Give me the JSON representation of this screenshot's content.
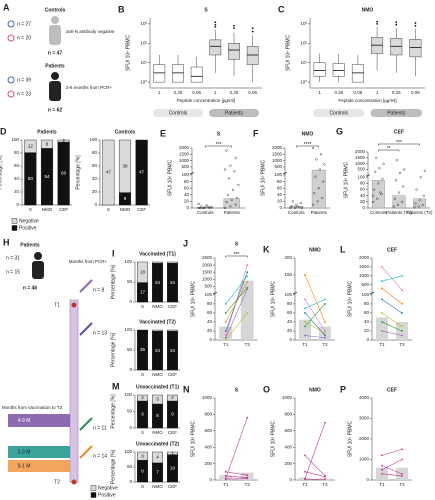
{
  "diagram_a": {
    "panel": "A",
    "controls": "Controls",
    "controls_male": "n = 27",
    "controls_female": "n = 20",
    "controls_note": "anti-N antibody negative",
    "controls_total": "n = 47",
    "patients": "Patients",
    "patients_male": "n = 39",
    "patients_female": "n = 23",
    "patients_note": "3-6 months from PCR+",
    "patients_total": "n = 62"
  },
  "diagram_h": {
    "panel": "H",
    "title": "Patients",
    "male": "n = 31",
    "female": "n = 15",
    "total": "n = 46",
    "axis": "Months from PCR+",
    "t1": "T1",
    "t2": "T2",
    "n1": "n = 8",
    "n2": "n = 13",
    "n3": "n = 11",
    "n4": "n = 14",
    "legend_title": "Months from vaccination to T2",
    "g1": "4-9 M",
    "g2": "2-3 M",
    "g3": "0-1 M"
  },
  "chart_data": [
    {
      "panel": "B",
      "type": "box",
      "title": "S",
      "ylabel": "SFU/ 10⁶ PBMC",
      "xlabel": "Peptide concentration [µg/ml]",
      "log": true,
      "ylim": [
        0.5,
        2000
      ],
      "yticks": [
        {
          "value": 1,
          "label": "10⁰"
        },
        {
          "value": 10,
          "label": "10¹"
        },
        {
          "value": 100,
          "label": "10²"
        },
        {
          "value": 1000,
          "label": "10³"
        }
      ],
      "groups": [
        {
          "name": "Controls",
          "color": "#ffffff",
          "pill": "#e6e6e6",
          "categories": [
            "1",
            "0.25",
            "0.06"
          ],
          "boxes": [
            {
              "low": 1,
              "q1": 1,
              "median": 3,
              "q3": 8,
              "high": 25
            },
            {
              "low": 1,
              "q1": 1,
              "median": 3,
              "q3": 8,
              "high": 25
            },
            {
              "low": 1,
              "q1": 1,
              "median": 2,
              "q3": 6,
              "high": 20
            }
          ]
        },
        {
          "name": "Patients",
          "color": "#d9d9d9",
          "pill": "#bdbdbd",
          "categories": [
            "1",
            "0.25",
            "0.06"
          ],
          "boxes": [
            {
              "low": 3,
              "q1": 25,
              "median": 70,
              "q3": 150,
              "high": 500,
              "outliers": [
                700,
                900,
                1200
              ]
            },
            {
              "low": 2,
              "q1": 15,
              "median": 45,
              "q3": 100,
              "high": 350,
              "outliers": [
                600,
                800
              ]
            },
            {
              "low": 1,
              "q1": 8,
              "median": 25,
              "q3": 70,
              "high": 250,
              "outliers": [
                400,
                600
              ]
            }
          ]
        }
      ]
    },
    {
      "panel": "C",
      "type": "box",
      "title": "NMO",
      "ylabel": "SFU/ 10⁶ PBMC",
      "xlabel": "Peptide concentration [µg/ml]",
      "log": true,
      "ylim": [
        0.5,
        2000
      ],
      "yticks": [
        {
          "value": 1,
          "label": "10⁰"
        },
        {
          "value": 10,
          "label": "10¹"
        },
        {
          "value": 100,
          "label": "10²"
        },
        {
          "value": 1000,
          "label": "10³"
        }
      ],
      "groups": [
        {
          "name": "Controls",
          "color": "#ffffff",
          "pill": "#e6e6e6",
          "categories": [
            "1",
            "0.25",
            "0.06"
          ],
          "boxes": [
            {
              "low": 1,
              "q1": 2,
              "median": 4,
              "q3": 10,
              "high": 30
            },
            {
              "low": 1,
              "q1": 2,
              "median": 4,
              "q3": 9,
              "high": 28
            },
            {
              "low": 1,
              "q1": 1,
              "median": 3,
              "q3": 8,
              "high": 25
            }
          ]
        },
        {
          "name": "Patients",
          "color": "#d9d9d9",
          "pill": "#bdbdbd",
          "categories": [
            "1",
            "0.25",
            "0.06"
          ],
          "boxes": [
            {
              "low": 4,
              "q1": 30,
              "median": 80,
              "q3": 200,
              "high": 700,
              "outliers": [
                1000,
                1300
              ]
            },
            {
              "low": 3,
              "q1": 25,
              "median": 70,
              "q3": 180,
              "high": 600,
              "outliers": [
                900,
                1200
              ]
            },
            {
              "low": 2,
              "q1": 20,
              "median": 60,
              "q3": 160,
              "high": 550,
              "outliers": [
                800,
                1100
              ]
            }
          ]
        }
      ]
    },
    {
      "panel": "D",
      "type": "stacked",
      "title": "Patients",
      "ylabel": "Percentage [%]",
      "categories": [
        "S",
        "NMO",
        "CEF"
      ],
      "ylim": [
        0,
        100
      ],
      "yticks": [
        0,
        20,
        40,
        60,
        80,
        100
      ],
      "legend": "bottom",
      "series": [
        {
          "name": "Negative",
          "color": "#d9d9d9",
          "values": [
            19.4,
            12.9,
            3.2
          ],
          "counts": [
            12,
            8,
            2
          ]
        },
        {
          "name": "Positive",
          "color": "#111111",
          "values": [
            80.6,
            87.1,
            96.8
          ],
          "counts": [
            50,
            54,
            60
          ]
        }
      ]
    },
    {
      "type": "stacked",
      "title": "Controls",
      "ylabel": "Percentage [%]",
      "categories": [
        "S",
        "NMO",
        "CEF"
      ],
      "ylim": [
        0,
        100
      ],
      "yticks": [
        0,
        20,
        40,
        60,
        80,
        100
      ],
      "series": [
        {
          "name": "Negative",
          "color": "#d9d9d9",
          "values": [
            100,
            80.9,
            0
          ],
          "counts": [
            47,
            38,
            null
          ]
        },
        {
          "name": "Positive",
          "color": "#111111",
          "values": [
            0,
            19.1,
            100
          ],
          "counts": [
            null,
            9,
            47
          ]
        }
      ]
    },
    {
      "panel": "E",
      "type": "dot",
      "title": "S",
      "ylabel": "SFU/ 10⁶ PBMC",
      "categories": [
        "Controls",
        "Patients"
      ],
      "ylim": [
        0,
        2000
      ],
      "ybreak": 100,
      "yticks": [
        0,
        20,
        40,
        60,
        80,
        100,
        500,
        1000,
        1500,
        2000
      ],
      "means": [
        2,
        28
      ],
      "points": [
        [
          0,
          0,
          0,
          0,
          2,
          3,
          5,
          8,
          1,
          0,
          4,
          12
        ],
        [
          0,
          5,
          10,
          18,
          25,
          30,
          40,
          55,
          70,
          90,
          150,
          300,
          600,
          1200,
          1800
        ]
      ],
      "significance": [
        {
          "label": "***",
          "from": 0,
          "to": 1
        }
      ]
    },
    {
      "panel": "F",
      "type": "dot",
      "title": "NMO",
      "ylabel": "SFU/ 10⁶ PBMC",
      "categories": [
        "Controls",
        "Patients"
      ],
      "ylim": [
        0,
        2000
      ],
      "ybreak": 100,
      "yticks": [
        0,
        20,
        40,
        60,
        80,
        100,
        500,
        1000,
        1500,
        2000
      ],
      "means": [
        5,
        250
      ],
      "points": [
        [
          0,
          0,
          2,
          5,
          10,
          15,
          20,
          4,
          0
        ],
        [
          10,
          20,
          30,
          45,
          60,
          80,
          95,
          300,
          700,
          1100,
          1500,
          2000
        ]
      ],
      "significance": [
        {
          "label": "****",
          "from": 0,
          "to": 1
        }
      ]
    },
    {
      "panel": "G",
      "type": "dot",
      "title": "CEF",
      "ylabel": "SFU/ 10⁶ PBMC",
      "categories": [
        "Controls",
        "Patients (T1)",
        "Patients (T2)"
      ],
      "ylim": [
        0,
        2000
      ],
      "ybreak": 100,
      "yticks": [
        0,
        20,
        40,
        60,
        80,
        100,
        500,
        1000,
        1500,
        2000
      ],
      "means": [
        90,
        40,
        30
      ],
      "points": [
        [
          20,
          30,
          45,
          60,
          80,
          95,
          300,
          600,
          1000,
          1500,
          50,
          40
        ],
        [
          5,
          10,
          20,
          30,
          50,
          70,
          90,
          200,
          500,
          1300
        ],
        [
          2,
          5,
          10,
          15,
          25,
          40,
          60,
          100,
          400
        ]
      ],
      "significance": [
        {
          "label": "**",
          "from": 0,
          "to": 1
        },
        {
          "label": "***",
          "from": 0,
          "to": 2
        }
      ]
    },
    {
      "panel": "I",
      "type": "stacked",
      "title": "Vaccinated (T1)",
      "ylabel": "Percentage [%]",
      "categories": [
        "S",
        "NMO",
        "CEF"
      ],
      "ylim": [
        0,
        100
      ],
      "yticks": [
        0,
        50,
        100
      ],
      "series": [
        {
          "name": "Negative",
          "color": "#d9d9d9",
          "values": [
            51.4,
            2.9,
            2.9
          ],
          "counts": [
            18,
            null,
            null
          ]
        },
        {
          "name": "Positive",
          "color": "#111111",
          "values": [
            48.6,
            97.1,
            97.1
          ],
          "counts": [
            17,
            34,
            34
          ]
        }
      ]
    },
    {
      "type": "stacked",
      "title": "Vaccinated (T2)",
      "ylabel": "Percentage [%]",
      "categories": [
        "S",
        "NMO",
        "CEF"
      ],
      "ylim": [
        0,
        100
      ],
      "yticks": [
        0,
        50,
        100
      ],
      "series": [
        {
          "name": "Negative",
          "color": "#d9d9d9",
          "values": [
            0,
            2.9,
            2.9
          ],
          "counts": [
            null,
            null,
            null
          ]
        },
        {
          "name": "Positive",
          "color": "#111111",
          "values": [
            100,
            97.1,
            97.1
          ],
          "counts": [
            35,
            34,
            34
          ]
        }
      ]
    },
    {
      "panel": "M",
      "type": "stacked",
      "title": "Unvaccinated (T1)",
      "ylabel": "Percentage [%]",
      "categories": [
        "S",
        "NMO",
        "CEF"
      ],
      "ylim": [
        0,
        100
      ],
      "yticks": [
        0,
        50,
        100
      ],
      "series": [
        {
          "name": "Negative",
          "color": "#d9d9d9",
          "values": [
            18.2,
            27.3,
            18.2
          ],
          "counts": [
            2,
            3,
            2
          ]
        },
        {
          "name": "Positive",
          "color": "#111111",
          "values": [
            81.8,
            72.7,
            81.8
          ],
          "counts": [
            9,
            8,
            9
          ]
        }
      ]
    },
    {
      "type": "stacked",
      "title": "Unvaccinated (T2)",
      "ylabel": "Percentage [%]",
      "categories": [
        "S",
        "NMO",
        "CEF"
      ],
      "ylim": [
        0,
        100
      ],
      "yticks": [
        0,
        50,
        100
      ],
      "legend": "left",
      "series": [
        {
          "name": "Negative",
          "color": "#d9d9d9",
          "values": [
            27.3,
            36.4,
            9.1
          ],
          "counts": [
            3,
            4,
            1
          ]
        },
        {
          "name": "Positive",
          "color": "#111111",
          "values": [
            72.7,
            63.6,
            90.9
          ],
          "counts": [
            8,
            7,
            10
          ]
        }
      ]
    },
    {
      "panel": "J",
      "type": "paired",
      "title": "S",
      "ylabel": "SFU/ 10⁶ PBMC",
      "categories": [
        "T1",
        "T2"
      ],
      "ylim": [
        0,
        2500
      ],
      "ybreak": 100,
      "yticks": [
        0,
        20,
        40,
        60,
        80,
        100,
        500,
        1000,
        1500,
        2000,
        2500
      ],
      "means": [
        30,
        900
      ],
      "significance": [
        {
          "label": "***",
          "from": 0,
          "to": 1
        }
      ],
      "series": [
        {
          "color": "#e377c2",
          "values": [
            10,
            2000
          ]
        },
        {
          "color": "#1f77b4",
          "values": [
            20,
            1500
          ]
        },
        {
          "color": "#ff7f0e",
          "values": [
            40,
            800
          ]
        },
        {
          "color": "#2ca02c",
          "values": [
            60,
            400
          ]
        },
        {
          "color": "#9467bd",
          "values": [
            5,
            300
          ]
        },
        {
          "color": "#17becf",
          "values": [
            80,
            1200
          ]
        },
        {
          "color": "#bcbd22",
          "values": [
            0,
            60
          ]
        }
      ]
    },
    {
      "panel": "K",
      "type": "paired",
      "title": "NMO",
      "ylabel": "SFU/ 10⁶ PBMC",
      "categories": [
        "T1",
        "T2"
      ],
      "ylim": [
        0,
        200
      ],
      "ybreak": 100,
      "yticks": [
        0,
        20,
        40,
        60,
        80,
        100,
        150,
        200
      ],
      "means": [
        45,
        30
      ],
      "series": [
        {
          "color": "#e377c2",
          "values": [
            90,
            20
          ]
        },
        {
          "color": "#1f77b4",
          "values": [
            60,
            10
          ]
        },
        {
          "color": "#ff7f0e",
          "values": [
            150,
            40
          ]
        },
        {
          "color": "#2ca02c",
          "values": [
            30,
            80
          ]
        },
        {
          "color": "#9467bd",
          "values": [
            10,
            5
          ]
        },
        {
          "color": "#17becf",
          "values": [
            70,
            90
          ]
        },
        {
          "color": "#bcbd22",
          "values": [
            40,
            15
          ]
        }
      ]
    },
    {
      "panel": "L",
      "type": "paired",
      "title": "CEF",
      "ylabel": "SFU/ 10⁶ PBMC",
      "categories": [
        "T1",
        "T2"
      ],
      "ylim": [
        0,
        2000
      ],
      "ybreak": 100,
      "yticks": [
        0,
        20,
        40,
        60,
        80,
        100,
        500,
        1000,
        1500,
        2000
      ],
      "means": [
        50,
        40
      ],
      "series": [
        {
          "color": "#e377c2",
          "values": [
            1500,
            200
          ]
        },
        {
          "color": "#1f77b4",
          "values": [
            90,
            60
          ]
        },
        {
          "color": "#ff7f0e",
          "values": [
            300,
            80
          ]
        },
        {
          "color": "#2ca02c",
          "values": [
            40,
            20
          ]
        },
        {
          "color": "#9467bd",
          "values": [
            20,
            10
          ]
        },
        {
          "color": "#17becf",
          "values": [
            700,
            1000
          ]
        },
        {
          "color": "#bcbd22",
          "values": [
            60,
            30
          ]
        }
      ]
    },
    {
      "panel": "N",
      "type": "paired",
      "title": "S",
      "ylabel": "SFU/ 10⁶ PBMC",
      "categories": [
        "T1",
        "T2"
      ],
      "ylim": [
        0,
        1000
      ],
      "yticks": [
        0,
        200,
        400,
        600,
        800,
        1000
      ],
      "means": [
        60,
        90
      ],
      "series": [
        {
          "color": "#c0399a",
          "values": [
            20,
            760
          ]
        },
        {
          "color": "#c0399a",
          "values": [
            50,
            30
          ]
        },
        {
          "color": "#c0399a",
          "values": [
            100,
            60
          ]
        },
        {
          "color": "#c0399a",
          "values": [
            10,
            20
          ]
        }
      ]
    },
    {
      "panel": "O",
      "type": "paired",
      "title": "NMO",
      "ylabel": "SFU/ 10⁶ PBMC",
      "categories": [
        "T1",
        "T2"
      ],
      "ylim": [
        0,
        1000
      ],
      "yticks": [
        0,
        200,
        400,
        600,
        800,
        1000
      ],
      "means": [
        30,
        20
      ],
      "series": [
        {
          "color": "#c0399a",
          "values": [
            300,
            50
          ]
        },
        {
          "color": "#c0399a",
          "values": [
            100,
            40
          ]
        },
        {
          "color": "#c0399a",
          "values": [
            20,
            700
          ]
        },
        {
          "color": "#c0399a",
          "values": [
            5,
            10
          ]
        }
      ]
    },
    {
      "panel": "P",
      "type": "paired",
      "title": "CEF",
      "ylabel": "SFU/ 10⁶ PBMC",
      "categories": [
        "T1",
        "T2"
      ],
      "ylim": [
        0,
        4000
      ],
      "yticks": [
        0,
        1000,
        2000,
        3000,
        4000
      ],
      "means": [
        600,
        600
      ],
      "series": [
        {
          "color": "#c0399a",
          "values": [
            500,
            1000
          ]
        },
        {
          "color": "#c0399a",
          "values": [
            1200,
            1500
          ]
        },
        {
          "color": "#c0399a",
          "values": [
            300,
            200
          ]
        },
        {
          "color": "#c0399a",
          "values": [
            700,
            300
          ]
        }
      ]
    }
  ]
}
